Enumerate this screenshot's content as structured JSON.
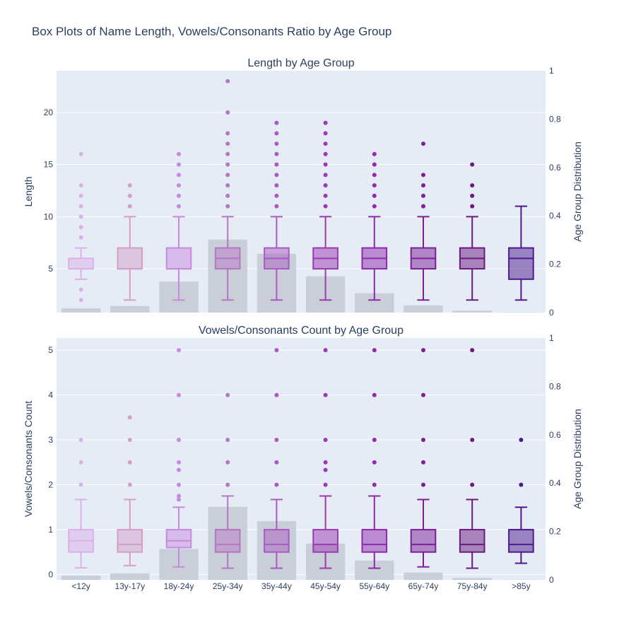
{
  "chart_data": {
    "title": "Box Plots of Name Length, Vowels/Consonants Ratio by Age Group",
    "type": "box",
    "categories": [
      "<12y",
      "13y-17y",
      "18y-24y",
      "25y-34y",
      "35y-44y",
      "45y-54y",
      "55y-64y",
      "65y-74y",
      "75y-84y",
      ">85y"
    ],
    "box_colors": [
      "#dcb0e6",
      "#d49ec6",
      "#c989dd",
      "#b576c2",
      "#a95bc2",
      "#9c3ab3",
      "#8e2aab",
      "#7d1f96",
      "#6b1a7f",
      "#4b1a8c"
    ],
    "bar_color": "#c4c9d2",
    "panels": [
      {
        "subtitle": "Length by Age Group",
        "ylabel": "Length",
        "ylabel2": "Age Group Distribution",
        "yrange": [
          0.8,
          24
        ],
        "yticks": [
          5,
          10,
          15,
          20
        ],
        "y2range": [
          0,
          1
        ],
        "y2ticks": [
          0,
          0.2,
          0.4,
          0.6,
          0.8,
          1
        ],
        "boxes": [
          {
            "q1": 5,
            "median": 5,
            "q3": 6,
            "lower": 4,
            "upper": 7,
            "outliers": [
              2,
              3,
              8,
              9,
              10,
              11,
              12,
              13,
              16
            ]
          },
          {
            "q1": 5,
            "median": 5,
            "q3": 7,
            "lower": 2,
            "upper": 10,
            "outliers": [
              11,
              12,
              13
            ]
          },
          {
            "q1": 5,
            "median": 5,
            "q3": 7,
            "lower": 2,
            "upper": 10,
            "outliers": [
              11,
              12,
              13,
              14,
              15,
              16
            ]
          },
          {
            "q1": 5,
            "median": 6,
            "q3": 7,
            "lower": 2,
            "upper": 10,
            "outliers": [
              11,
              12,
              13,
              14,
              15,
              16,
              17,
              18,
              20,
              23
            ]
          },
          {
            "q1": 5,
            "median": 6,
            "q3": 7,
            "lower": 2,
            "upper": 10,
            "outliers": [
              11,
              12,
              13,
              14,
              15,
              16,
              17,
              18,
              19
            ]
          },
          {
            "q1": 5,
            "median": 6,
            "q3": 7,
            "lower": 2,
            "upper": 10,
            "outliers": [
              11,
              12,
              13,
              14,
              15,
              16,
              17,
              18,
              19
            ]
          },
          {
            "q1": 5,
            "median": 6,
            "q3": 7,
            "lower": 2,
            "upper": 10,
            "outliers": [
              11,
              12,
              13,
              14,
              15,
              16
            ]
          },
          {
            "q1": 5,
            "median": 6,
            "q3": 7,
            "lower": 2,
            "upper": 10,
            "outliers": [
              11,
              12,
              13,
              14,
              17
            ]
          },
          {
            "q1": 5,
            "median": 6,
            "q3": 7,
            "lower": 2,
            "upper": 10,
            "outliers": [
              11,
              12,
              13,
              15
            ]
          },
          {
            "q1": 4,
            "median": 6,
            "q3": 7,
            "lower": 2,
            "upper": 11,
            "outliers": []
          }
        ],
        "distribution": [
          0.018,
          0.027,
          0.128,
          0.302,
          0.243,
          0.15,
          0.08,
          0.03,
          0.008,
          0.001
        ]
      },
      {
        "subtitle": "Vowels/Consonants Count by Age Group",
        "ylabel": "Vowels/Consonants Count",
        "ylabel2": "Age Group Distribution",
        "yrange": [
          -0.12,
          5.27
        ],
        "yticks": [
          0,
          1,
          2,
          3,
          4,
          5
        ],
        "y2range": [
          0,
          1
        ],
        "y2ticks": [
          0,
          0.2,
          0.4,
          0.6,
          0.8,
          1
        ],
        "boxes": [
          {
            "q1": 0.5,
            "median": 0.75,
            "q3": 1,
            "lower": 0.15,
            "upper": 1.67,
            "outliers": [
              2,
              2.5,
              3
            ]
          },
          {
            "q1": 0.5,
            "median": 0.67,
            "q3": 1,
            "lower": 0.2,
            "upper": 1.67,
            "outliers": [
              2,
              2.5,
              3,
              3.5
            ]
          },
          {
            "q1": 0.6,
            "median": 0.75,
            "q3": 1,
            "lower": 0.17,
            "upper": 1.5,
            "outliers": [
              1.67,
              1.75,
              2,
              2.33,
              2.5,
              3,
              4,
              5
            ]
          },
          {
            "q1": 0.5,
            "median": 0.67,
            "q3": 1,
            "lower": 0.14,
            "upper": 1.75,
            "outliers": [
              2,
              2.5,
              3,
              4
            ]
          },
          {
            "q1": 0.5,
            "median": 0.67,
            "q3": 1,
            "lower": 0.14,
            "upper": 1.67,
            "outliers": [
              2,
              2.5,
              3,
              4,
              5
            ]
          },
          {
            "q1": 0.5,
            "median": 0.67,
            "q3": 1,
            "lower": 0.14,
            "upper": 1.75,
            "outliers": [
              2,
              2.33,
              2.5,
              3,
              4,
              5
            ]
          },
          {
            "q1": 0.5,
            "median": 0.67,
            "q3": 1,
            "lower": 0.14,
            "upper": 1.75,
            "outliers": [
              2,
              2.5,
              3,
              4,
              5
            ]
          },
          {
            "q1": 0.5,
            "median": 0.67,
            "q3": 1,
            "lower": 0.17,
            "upper": 1.67,
            "outliers": [
              2,
              2.5,
              3,
              4,
              5
            ]
          },
          {
            "q1": 0.5,
            "median": 0.67,
            "q3": 1,
            "lower": 0.14,
            "upper": 1.67,
            "outliers": [
              2,
              3,
              5
            ]
          },
          {
            "q1": 0.5,
            "median": 0.67,
            "q3": 1,
            "lower": 0.25,
            "upper": 1.5,
            "outliers": [
              2,
              3
            ]
          }
        ],
        "distribution": [
          0.018,
          0.027,
          0.128,
          0.302,
          0.243,
          0.15,
          0.08,
          0.03,
          0.008,
          0.001
        ]
      }
    ]
  }
}
